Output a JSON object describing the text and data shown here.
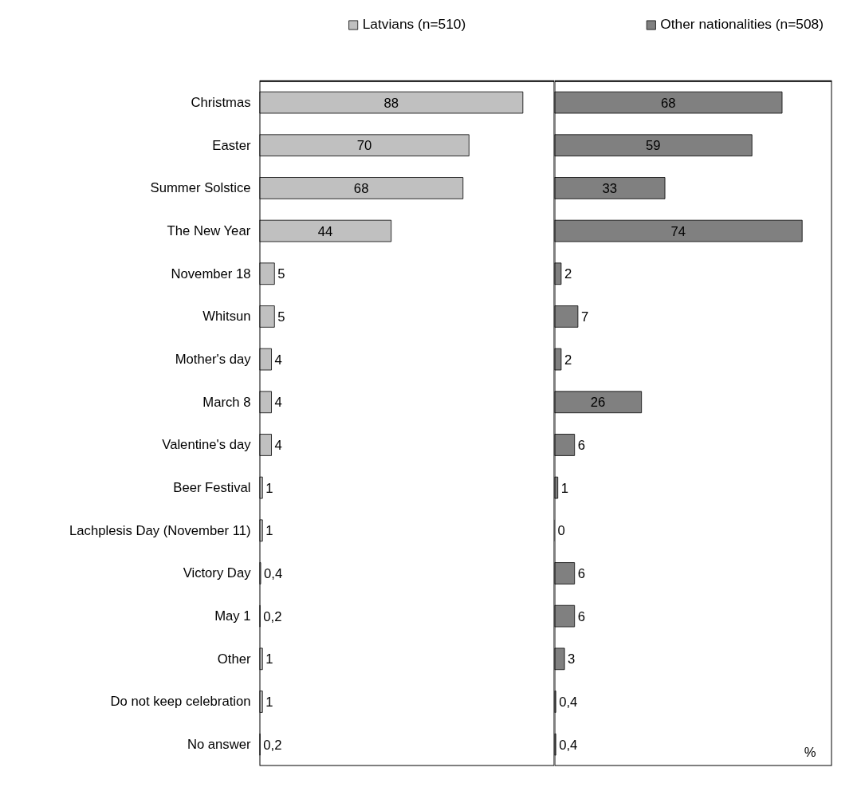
{
  "chart_data": [
    {
      "type": "bar",
      "orientation": "horizontal",
      "legend": "top",
      "grid": false,
      "tick_labels": "y",
      "data_labels": true,
      "categories": [
        "Christmas",
        "Easter",
        "Summer Solstice",
        "The New Year",
        "November 18",
        "Whitsun",
        "Mother's day",
        "March 8",
        "Valentine's day",
        "Beer Festival",
        "Lachplesis Day (November 11)",
        "Victory Day",
        "May 1",
        "Other",
        "Do not keep celebration",
        "No answer"
      ],
      "series": [
        {
          "name": "Latvians (n=510)",
          "color": "#c0c0c0",
          "values": [
            88,
            70,
            68,
            44,
            5,
            5,
            4,
            4,
            4,
            1,
            1,
            0.4,
            0.2,
            1,
            1,
            0.2
          ],
          "value_labels": [
            "88",
            "70",
            "68",
            "44",
            "5",
            "5",
            "4",
            "4",
            "4",
            "1",
            "1",
            "0,4",
            "0,2",
            "1",
            "1",
            "0,2"
          ]
        }
      ]
    },
    {
      "type": "bar",
      "orientation": "horizontal",
      "legend": "top",
      "grid": false,
      "tick_labels": false,
      "data_labels": true,
      "categories": [
        null,
        null,
        null,
        null,
        null,
        null,
        null,
        null,
        null,
        null,
        null,
        null,
        null,
        null,
        null,
        null
      ],
      "series": [
        {
          "name": "Other nationalities (n=508)",
          "color": "#808080",
          "values": [
            68,
            59,
            33,
            74,
            2,
            7,
            2,
            26,
            6,
            1,
            0,
            6,
            6,
            3,
            0.4,
            0.4
          ],
          "value_labels": [
            "68",
            "59",
            "33",
            "74",
            "2",
            "7",
            "2",
            "26",
            "6",
            "1",
            "0",
            "6",
            "6",
            "3",
            "0,4",
            "0,4"
          ]
        }
      ],
      "annotations": [
        "%"
      ]
    }
  ]
}
